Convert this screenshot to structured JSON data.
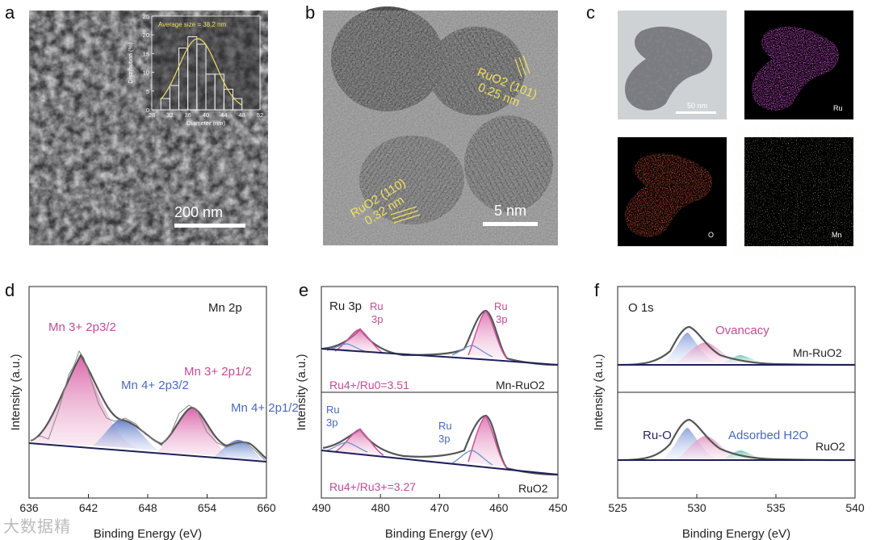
{
  "panels": {
    "a": {
      "label": "a",
      "scale_bar": "200 nm",
      "inset": {
        "annotation": "Average size = 38.2 nm",
        "xlabel": "Diameter (nm)",
        "ylabel": "Distribution (%)",
        "x_ticks": [
          "28",
          "32",
          "36",
          "40",
          "44",
          "48",
          "52"
        ],
        "y_ticks": [
          "0",
          "5",
          "10",
          "15",
          "20",
          "25"
        ],
        "bins": [
          31,
          33,
          35,
          37,
          39,
          41,
          43,
          45,
          47
        ],
        "values": [
          3,
          6.5,
          16.5,
          19.5,
          17.5,
          9.5,
          9.5,
          5.5,
          3
        ]
      }
    },
    "b": {
      "label": "b",
      "scale_bar": "5 nm",
      "ann1": "RuO2 (101)",
      "ann1_d": "0.25 nm",
      "ann2": "RuO2 (110)",
      "ann2_d": "0.32 nm"
    },
    "c": {
      "label": "c",
      "scale_bar": "50 nm",
      "maps": [
        "Ru",
        "O",
        "Mn"
      ]
    },
    "d": {
      "label": "d",
      "title": "Mn 2p",
      "xlabel": "Binding Energy (eV)",
      "ylabel": "Intensity (a.u.)",
      "x_ticks": [
        "636",
        "642",
        "648",
        "654",
        "660"
      ],
      "peaks": [
        "Mn 3+ 2p3/2",
        "Mn 4+ 2p3/2",
        "Mn 3+ 2p1/2",
        "Mn 4+ 2p1/2"
      ]
    },
    "e": {
      "label": "e",
      "title": "Ru 3p",
      "xlabel": "Binding Energy (eV)",
      "ylabel": "Intensity (a.u.)",
      "x_ticks": [
        "490",
        "480",
        "470",
        "460",
        "450"
      ],
      "top_ratio": "Ru4+/Ru0=3.51",
      "top_sample": "Mn-RuO2",
      "bottom_ratio": "Ru4+/Ru3+=3.27",
      "bottom_sample": "RuO2"
    },
    "f": {
      "label": "f",
      "title": "O 1s",
      "xlabel": "Binding Energy (eV)",
      "ylabel": "Intensity (a.u.)",
      "x_ticks": [
        "525",
        "530",
        "535",
        "540"
      ],
      "top_sample": "Mn-RuO2",
      "bottom_sample": "RuO2",
      "ovacancy": "Ovancacy",
      "ruo": "Ru-O",
      "adsorbed": "Adsorbed H2O"
    }
  },
  "watermark": "大数据精"
}
